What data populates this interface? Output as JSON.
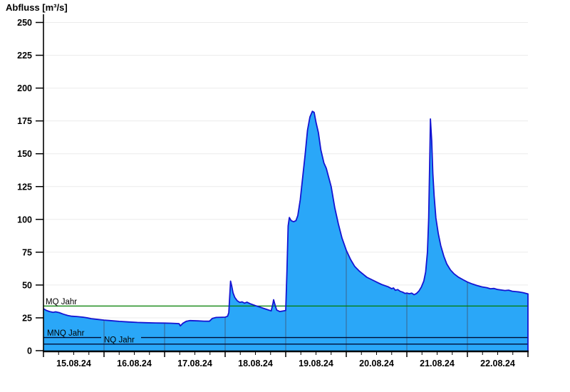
{
  "page": {
    "title": "Abfluss [m³/s]"
  },
  "chart_data": {
    "type": "area",
    "title": "Abfluss [m³/s]",
    "ylabel": "Abfluss [m³/s]",
    "xlabel": "",
    "ylim": [
      0,
      250
    ],
    "ytick_step": 25,
    "yticks": [
      0,
      25,
      50,
      75,
      100,
      125,
      150,
      175,
      200,
      225,
      250
    ],
    "categories": [
      "15.08.24",
      "16.08.24",
      "17.08.24",
      "18.08.24",
      "19.08.24",
      "20.08.24",
      "21.08.24",
      "22.08.24"
    ],
    "x_unit": "days",
    "x_range_days": [
      0,
      8
    ],
    "minor_ticks_per_day": 3,
    "grid": "horizontal",
    "legend": "none",
    "series": [
      {
        "name": "Abfluss",
        "x": [
          0,
          0.05,
          0.1,
          0.16,
          0.2,
          0.26,
          0.33,
          0.4,
          0.47,
          0.55,
          0.65,
          0.72,
          0.79,
          0.9,
          1.0,
          1.1,
          1.25,
          1.4,
          1.55,
          1.7,
          1.85,
          2.0,
          2.1,
          2.2,
          2.24,
          2.26,
          2.3,
          2.36,
          2.42,
          2.55,
          2.65,
          2.74,
          2.79,
          2.85,
          3.0,
          3.04,
          3.06,
          3.09,
          3.11,
          3.13,
          3.16,
          3.2,
          3.24,
          3.28,
          3.32,
          3.36,
          3.42,
          3.5,
          3.6,
          3.7,
          3.76,
          3.79,
          3.8,
          3.82,
          3.85,
          3.9,
          3.96,
          4.0,
          4.02,
          4.04,
          4.06,
          4.09,
          4.13,
          4.17,
          4.2,
          4.24,
          4.28,
          4.32,
          4.36,
          4.4,
          4.44,
          4.47,
          4.5,
          4.54,
          4.58,
          4.63,
          4.67,
          4.75,
          4.81,
          4.87,
          4.93,
          5.0,
          5.07,
          5.14,
          5.22,
          5.34,
          5.46,
          5.52,
          5.58,
          5.64,
          5.69,
          5.75,
          5.78,
          5.81,
          5.85,
          5.89,
          5.93,
          5.97,
          6.0,
          6.04,
          6.08,
          6.12,
          6.16,
          6.2,
          6.24,
          6.28,
          6.31,
          6.34,
          6.36,
          6.38,
          6.39,
          6.41,
          6.43,
          6.45,
          6.48,
          6.52,
          6.56,
          6.61,
          6.66,
          6.72,
          6.78,
          6.85,
          6.93,
          7.0,
          7.08,
          7.16,
          7.24,
          7.32,
          7.38,
          7.44,
          7.5,
          7.56,
          7.62,
          7.68,
          7.74,
          7.8,
          7.86,
          7.92,
          8.0
        ],
        "values": [
          31.9,
          30.6,
          29.8,
          29.2,
          29.6,
          29.0,
          27.8,
          26.8,
          26.2,
          26.0,
          25.5,
          25.0,
          24.4,
          23.8,
          23.3,
          22.9,
          22.3,
          21.9,
          21.5,
          21.3,
          21.1,
          21.0,
          20.9,
          20.7,
          20.5,
          18.9,
          20.8,
          22.4,
          22.9,
          22.7,
          22.5,
          22.4,
          24.6,
          25.3,
          25.5,
          26.2,
          29.0,
          53.0,
          49.0,
          44.0,
          40.5,
          38.0,
          36.8,
          37.2,
          36.2,
          36.9,
          35.6,
          34.3,
          32.8,
          31.2,
          30.3,
          36.0,
          38.8,
          35.5,
          31.0,
          29.8,
          30.3,
          30.6,
          60.0,
          95.0,
          101.4,
          99.0,
          98.2,
          99.0,
          103.0,
          115.0,
          132.0,
          149.0,
          168.0,
          178.0,
          182.3,
          181.5,
          174.0,
          166.0,
          153.0,
          143.0,
          139.0,
          125.0,
          109.0,
          96.5,
          85.7,
          76.5,
          69.5,
          64.1,
          60.4,
          55.9,
          53.2,
          51.8,
          50.5,
          49.5,
          48.7,
          47.2,
          47.8,
          46.0,
          46.5,
          45.2,
          44.6,
          43.6,
          43.9,
          43.4,
          43.8,
          42.6,
          43.6,
          45.5,
          48.5,
          53.0,
          60.0,
          75.0,
          100.0,
          150.0,
          176.5,
          160.0,
          135.0,
          118.0,
          101.0,
          89.0,
          80.0,
          72.0,
          66.0,
          61.5,
          58.5,
          56.0,
          54.0,
          52.3,
          50.8,
          49.6,
          48.6,
          48.0,
          47.2,
          47.4,
          46.6,
          46.2,
          45.8,
          46.1,
          45.3,
          45.0,
          44.7,
          44.2,
          43.2
        ]
      }
    ],
    "reference_lines": [
      {
        "label": "MQ Jahr",
        "value": 34,
        "color": "#007d00"
      },
      {
        "label": "MNQ Jahr",
        "value": 10,
        "color": "#000d33"
      },
      {
        "label": "NQ Jahr",
        "value": 5,
        "color": "#000d33"
      }
    ],
    "colors": {
      "fill": "#2aa7f8",
      "line": "#1414d2",
      "day_separator": "#376f9e",
      "grid": "#ebebeb",
      "axis": "#000000",
      "text": "#000000"
    }
  }
}
